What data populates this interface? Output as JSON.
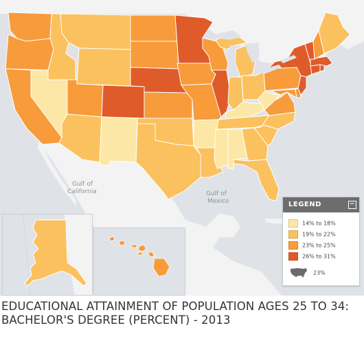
{
  "title_line1": "EDUCATIONAL ATTAINMENT OF POPULATION AGES 25 TO 34:",
  "title_line2": "BACHELOR'S DEGREE (PERCENT) - 2013",
  "water_labels": {
    "gulf_california_1": "Gulf of",
    "gulf_california_2": "California",
    "gulf_mexico_1": "Gulf of",
    "gulf_mexico_2": "Mexico"
  },
  "legend": {
    "title": "LEGEND",
    "collapse_symbol": "−",
    "classes": [
      {
        "label": "14% to 18%",
        "color": "#fde7a6"
      },
      {
        "label": "19% to 22%",
        "color": "#fbc15e"
      },
      {
        "label": "23% to 25%",
        "color": "#f79b3b"
      },
      {
        "label": "26% to 31%",
        "color": "#e05b2a"
      }
    ],
    "us_value": "23%"
  },
  "colors": {
    "c1": "#fde7a6",
    "c2": "#fbc15e",
    "c3": "#f79b3b",
    "c4": "#e05b2a",
    "land": "#f3f3f3",
    "water": "#dfe3e8",
    "border": "#ffffff"
  },
  "states": {
    "WA": 3,
    "OR": 3,
    "CA": 3,
    "ID": 2,
    "NV": 1,
    "MT": 2,
    "WY": 2,
    "UT": 3,
    "AZ": 2,
    "CO": 4,
    "NM": 1,
    "ND": 3,
    "SD": 3,
    "NE": 4,
    "KS": 3,
    "OK": 2,
    "TX": 2,
    "MN": 4,
    "IA": 3,
    "MO": 3,
    "AR": 1,
    "LA": 2,
    "WI": 3,
    "IL": 4,
    "MI": 2,
    "IN": 2,
    "OH": 2,
    "KY": 1,
    "TN": 2,
    "MS": 1,
    "AL": 1,
    "GA": 2,
    "FL": 2,
    "SC": 2,
    "NC": 2,
    "VA": 3,
    "WV": 1,
    "PA": 3,
    "NY": 4,
    "VT": 4,
    "NH": 3,
    "ME": 2,
    "MA": 4,
    "CT": 4,
    "RI": 4,
    "NJ": 4,
    "DE": 3,
    "MD": 3,
    "AK": 2,
    "HI": 3
  }
}
